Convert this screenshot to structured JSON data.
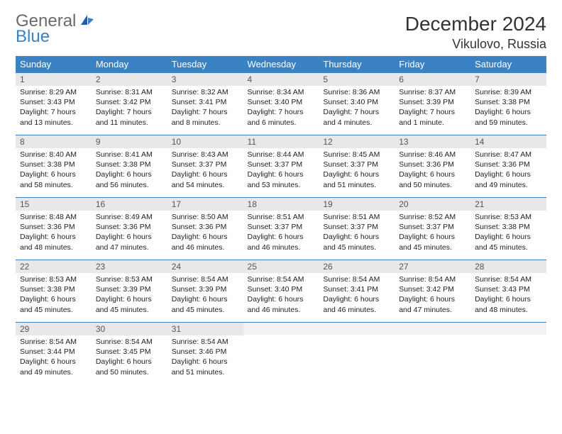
{
  "logo": {
    "general": "General",
    "blue": "Blue"
  },
  "title": "December 2024",
  "location": "Vikulovo, Russia",
  "colors": {
    "header_bg": "#3b82c4",
    "header_text": "#ffffff",
    "daynum_bg": "#e8e8e8",
    "border": "#3b82c4",
    "body_text": "#222222",
    "title_text": "#333333",
    "logo_gray": "#6a6a6a",
    "logo_blue": "#3b82c4",
    "page_bg": "#ffffff"
  },
  "weekdays": [
    "Sunday",
    "Monday",
    "Tuesday",
    "Wednesday",
    "Thursday",
    "Friday",
    "Saturday"
  ],
  "weeks": [
    [
      {
        "n": "1",
        "sr": "Sunrise: 8:29 AM",
        "ss": "Sunset: 3:43 PM",
        "d1": "Daylight: 7 hours",
        "d2": "and 13 minutes."
      },
      {
        "n": "2",
        "sr": "Sunrise: 8:31 AM",
        "ss": "Sunset: 3:42 PM",
        "d1": "Daylight: 7 hours",
        "d2": "and 11 minutes."
      },
      {
        "n": "3",
        "sr": "Sunrise: 8:32 AM",
        "ss": "Sunset: 3:41 PM",
        "d1": "Daylight: 7 hours",
        "d2": "and 8 minutes."
      },
      {
        "n": "4",
        "sr": "Sunrise: 8:34 AM",
        "ss": "Sunset: 3:40 PM",
        "d1": "Daylight: 7 hours",
        "d2": "and 6 minutes."
      },
      {
        "n": "5",
        "sr": "Sunrise: 8:36 AM",
        "ss": "Sunset: 3:40 PM",
        "d1": "Daylight: 7 hours",
        "d2": "and 4 minutes."
      },
      {
        "n": "6",
        "sr": "Sunrise: 8:37 AM",
        "ss": "Sunset: 3:39 PM",
        "d1": "Daylight: 7 hours",
        "d2": "and 1 minute."
      },
      {
        "n": "7",
        "sr": "Sunrise: 8:39 AM",
        "ss": "Sunset: 3:38 PM",
        "d1": "Daylight: 6 hours",
        "d2": "and 59 minutes."
      }
    ],
    [
      {
        "n": "8",
        "sr": "Sunrise: 8:40 AM",
        "ss": "Sunset: 3:38 PM",
        "d1": "Daylight: 6 hours",
        "d2": "and 58 minutes."
      },
      {
        "n": "9",
        "sr": "Sunrise: 8:41 AM",
        "ss": "Sunset: 3:38 PM",
        "d1": "Daylight: 6 hours",
        "d2": "and 56 minutes."
      },
      {
        "n": "10",
        "sr": "Sunrise: 8:43 AM",
        "ss": "Sunset: 3:37 PM",
        "d1": "Daylight: 6 hours",
        "d2": "and 54 minutes."
      },
      {
        "n": "11",
        "sr": "Sunrise: 8:44 AM",
        "ss": "Sunset: 3:37 PM",
        "d1": "Daylight: 6 hours",
        "d2": "and 53 minutes."
      },
      {
        "n": "12",
        "sr": "Sunrise: 8:45 AM",
        "ss": "Sunset: 3:37 PM",
        "d1": "Daylight: 6 hours",
        "d2": "and 51 minutes."
      },
      {
        "n": "13",
        "sr": "Sunrise: 8:46 AM",
        "ss": "Sunset: 3:36 PM",
        "d1": "Daylight: 6 hours",
        "d2": "and 50 minutes."
      },
      {
        "n": "14",
        "sr": "Sunrise: 8:47 AM",
        "ss": "Sunset: 3:36 PM",
        "d1": "Daylight: 6 hours",
        "d2": "and 49 minutes."
      }
    ],
    [
      {
        "n": "15",
        "sr": "Sunrise: 8:48 AM",
        "ss": "Sunset: 3:36 PM",
        "d1": "Daylight: 6 hours",
        "d2": "and 48 minutes."
      },
      {
        "n": "16",
        "sr": "Sunrise: 8:49 AM",
        "ss": "Sunset: 3:36 PM",
        "d1": "Daylight: 6 hours",
        "d2": "and 47 minutes."
      },
      {
        "n": "17",
        "sr": "Sunrise: 8:50 AM",
        "ss": "Sunset: 3:36 PM",
        "d1": "Daylight: 6 hours",
        "d2": "and 46 minutes."
      },
      {
        "n": "18",
        "sr": "Sunrise: 8:51 AM",
        "ss": "Sunset: 3:37 PM",
        "d1": "Daylight: 6 hours",
        "d2": "and 46 minutes."
      },
      {
        "n": "19",
        "sr": "Sunrise: 8:51 AM",
        "ss": "Sunset: 3:37 PM",
        "d1": "Daylight: 6 hours",
        "d2": "and 45 minutes."
      },
      {
        "n": "20",
        "sr": "Sunrise: 8:52 AM",
        "ss": "Sunset: 3:37 PM",
        "d1": "Daylight: 6 hours",
        "d2": "and 45 minutes."
      },
      {
        "n": "21",
        "sr": "Sunrise: 8:53 AM",
        "ss": "Sunset: 3:38 PM",
        "d1": "Daylight: 6 hours",
        "d2": "and 45 minutes."
      }
    ],
    [
      {
        "n": "22",
        "sr": "Sunrise: 8:53 AM",
        "ss": "Sunset: 3:38 PM",
        "d1": "Daylight: 6 hours",
        "d2": "and 45 minutes."
      },
      {
        "n": "23",
        "sr": "Sunrise: 8:53 AM",
        "ss": "Sunset: 3:39 PM",
        "d1": "Daylight: 6 hours",
        "d2": "and 45 minutes."
      },
      {
        "n": "24",
        "sr": "Sunrise: 8:54 AM",
        "ss": "Sunset: 3:39 PM",
        "d1": "Daylight: 6 hours",
        "d2": "and 45 minutes."
      },
      {
        "n": "25",
        "sr": "Sunrise: 8:54 AM",
        "ss": "Sunset: 3:40 PM",
        "d1": "Daylight: 6 hours",
        "d2": "and 46 minutes."
      },
      {
        "n": "26",
        "sr": "Sunrise: 8:54 AM",
        "ss": "Sunset: 3:41 PM",
        "d1": "Daylight: 6 hours",
        "d2": "and 46 minutes."
      },
      {
        "n": "27",
        "sr": "Sunrise: 8:54 AM",
        "ss": "Sunset: 3:42 PM",
        "d1": "Daylight: 6 hours",
        "d2": "and 47 minutes."
      },
      {
        "n": "28",
        "sr": "Sunrise: 8:54 AM",
        "ss": "Sunset: 3:43 PM",
        "d1": "Daylight: 6 hours",
        "d2": "and 48 minutes."
      }
    ],
    [
      {
        "n": "29",
        "sr": "Sunrise: 8:54 AM",
        "ss": "Sunset: 3:44 PM",
        "d1": "Daylight: 6 hours",
        "d2": "and 49 minutes."
      },
      {
        "n": "30",
        "sr": "Sunrise: 8:54 AM",
        "ss": "Sunset: 3:45 PM",
        "d1": "Daylight: 6 hours",
        "d2": "and 50 minutes."
      },
      {
        "n": "31",
        "sr": "Sunrise: 8:54 AM",
        "ss": "Sunset: 3:46 PM",
        "d1": "Daylight: 6 hours",
        "d2": "and 51 minutes."
      },
      null,
      null,
      null,
      null
    ]
  ]
}
